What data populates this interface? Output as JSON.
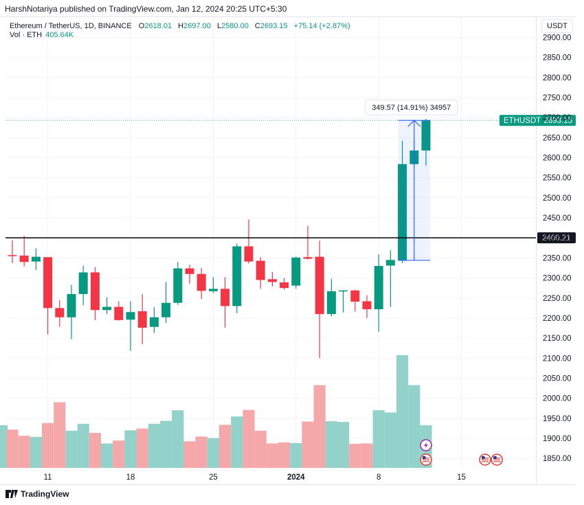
{
  "publisher_line": "HarshNotariya published on TradingView.com, Jan 12, 2024 20:25 UTC+5:30",
  "currency_button": "USDT",
  "footer_brand": "TradingView",
  "legend": {
    "symbol": "Ethereum / TetherUS, 1D, BINANCE",
    "o_label": "O",
    "o_value": "2618.01",
    "h_label": "H",
    "h_value": "2697.00",
    "l_label": "L",
    "l_value": "2580.00",
    "c_label": "C",
    "c_value": "2693.15",
    "change": "+75.14 (+2.87%)",
    "vol_label": "Vol · ETH",
    "vol_value": "405.64K"
  },
  "colors": {
    "up": "#26a69a",
    "up_dark": "#089981",
    "down": "#f23645",
    "up_volume": "#93d1cb",
    "down_volume": "#f5a8aa",
    "measure": "#2962ff",
    "level_line": "#000000",
    "axis_text": "#131722",
    "last_price_bg": "#089981"
  },
  "chart_data": {
    "type": "candlestick",
    "title": "Ethereum / TetherUS, 1D, BINANCE",
    "ylim": [
      1820,
      2920
    ],
    "y_ticks": [
      1850,
      1900,
      1950,
      2000,
      2050,
      2100,
      2150,
      2200,
      2250,
      2300,
      2350,
      2400,
      2450,
      2500,
      2550,
      2600,
      2650,
      2700,
      2750,
      2800,
      2850,
      2900
    ],
    "y_tick_labels": [
      "1850.00",
      "1900.00",
      "1950.00",
      "2000.00",
      "2050.00",
      "2100.00",
      "2150.00",
      "2200.00",
      "2250.00",
      "2300.00",
      "2350.00",
      "2400.00",
      "2450.00",
      "2500.00",
      "2550.00",
      "2600.00",
      "2650.00",
      "2700.00",
      "2750.00",
      "2800.00",
      "2850.00",
      "2900.00"
    ],
    "x_tick_labels": [
      {
        "label": "11",
        "index": 3,
        "bold": false
      },
      {
        "label": "18",
        "index": 10,
        "bold": false
      },
      {
        "label": "25",
        "index": 17,
        "bold": false
      },
      {
        "label": "2024",
        "index": 24,
        "bold": true
      },
      {
        "label": "8",
        "index": 31,
        "bold": false
      },
      {
        "label": "15",
        "index": 38,
        "bold": false
      }
    ],
    "candles": [
      {
        "o": 2357,
        "h": 2394,
        "l": 2337,
        "c": 2355
      },
      {
        "o": 2356,
        "h": 2405,
        "l": 2329,
        "c": 2340
      },
      {
        "o": 2341,
        "h": 2374,
        "l": 2320,
        "c": 2353
      },
      {
        "o": 2352,
        "h": 2352,
        "l": 2159,
        "c": 2225
      },
      {
        "o": 2225,
        "h": 2245,
        "l": 2178,
        "c": 2202
      },
      {
        "o": 2202,
        "h": 2283,
        "l": 2147,
        "c": 2260
      },
      {
        "o": 2260,
        "h": 2331,
        "l": 2232,
        "c": 2314
      },
      {
        "o": 2314,
        "h": 2327,
        "l": 2195,
        "c": 2220
      },
      {
        "o": 2220,
        "h": 2252,
        "l": 2210,
        "c": 2228
      },
      {
        "o": 2228,
        "h": 2242,
        "l": 2194,
        "c": 2195
      },
      {
        "o": 2196,
        "h": 2242,
        "l": 2118,
        "c": 2215
      },
      {
        "o": 2217,
        "h": 2260,
        "l": 2135,
        "c": 2176
      },
      {
        "o": 2178,
        "h": 2227,
        "l": 2163,
        "c": 2202
      },
      {
        "o": 2202,
        "h": 2290,
        "l": 2188,
        "c": 2238
      },
      {
        "o": 2238,
        "h": 2340,
        "l": 2233,
        "c": 2324
      },
      {
        "o": 2324,
        "h": 2333,
        "l": 2286,
        "c": 2310
      },
      {
        "o": 2310,
        "h": 2325,
        "l": 2248,
        "c": 2268
      },
      {
        "o": 2267,
        "h": 2302,
        "l": 2262,
        "c": 2273
      },
      {
        "o": 2273,
        "h": 2302,
        "l": 2176,
        "c": 2230
      },
      {
        "o": 2230,
        "h": 2386,
        "l": 2212,
        "c": 2379
      },
      {
        "o": 2379,
        "h": 2446,
        "l": 2336,
        "c": 2341
      },
      {
        "o": 2343,
        "h": 2352,
        "l": 2273,
        "c": 2295
      },
      {
        "o": 2297,
        "h": 2315,
        "l": 2279,
        "c": 2290
      },
      {
        "o": 2289,
        "h": 2300,
        "l": 2271,
        "c": 2275
      },
      {
        "o": 2281,
        "h": 2353,
        "l": 2273,
        "c": 2351
      },
      {
        "o": 2352,
        "h": 2430,
        "l": 2346,
        "c": 2348
      },
      {
        "o": 2353,
        "h": 2393,
        "l": 2100,
        "c": 2210
      },
      {
        "o": 2210,
        "h": 2298,
        "l": 2204,
        "c": 2267
      },
      {
        "o": 2268,
        "h": 2270,
        "l": 2214,
        "c": 2269
      },
      {
        "o": 2269,
        "h": 2271,
        "l": 2216,
        "c": 2241
      },
      {
        "o": 2242,
        "h": 2257,
        "l": 2200,
        "c": 2222
      },
      {
        "o": 2222,
        "h": 2359,
        "l": 2166,
        "c": 2330
      },
      {
        "o": 2331,
        "h": 2369,
        "l": 2228,
        "c": 2345
      },
      {
        "o": 2344,
        "h": 2642,
        "l": 2337,
        "c": 2584
      },
      {
        "o": 2584,
        "h": 2643,
        "l": 2577,
        "c": 2618
      },
      {
        "o": 2618,
        "h": 2697,
        "l": 2580,
        "c": 2693
      }
    ],
    "volume": [
      105,
      88,
      85,
      123,
      180,
      102,
      121,
      96,
      67,
      75,
      103,
      108,
      121,
      129,
      158,
      73,
      86,
      82,
      118,
      141,
      159,
      102,
      67,
      70,
      68,
      127,
      227,
      128,
      126,
      66,
      67,
      158,
      152,
      309,
      227,
      117
    ],
    "volume_max_value": 309,
    "horizontal_level": {
      "value": 2400.21,
      "label": "2400.21"
    },
    "last_price": {
      "symbol": "ETHUSDT",
      "value": "2693.15"
    },
    "measure": {
      "label": "349.57 (14.91%) 34957",
      "from_index": 33,
      "from": 2344,
      "to": 2693.15
    },
    "grid": true,
    "event_icons": [
      {
        "index": 35,
        "kind": "flash-icon"
      },
      {
        "index": 35,
        "kind": "us-flag-icon"
      },
      {
        "index": 40,
        "kind": "us-flag-icon"
      },
      {
        "index": 41,
        "kind": "us-flag-icon"
      }
    ]
  }
}
